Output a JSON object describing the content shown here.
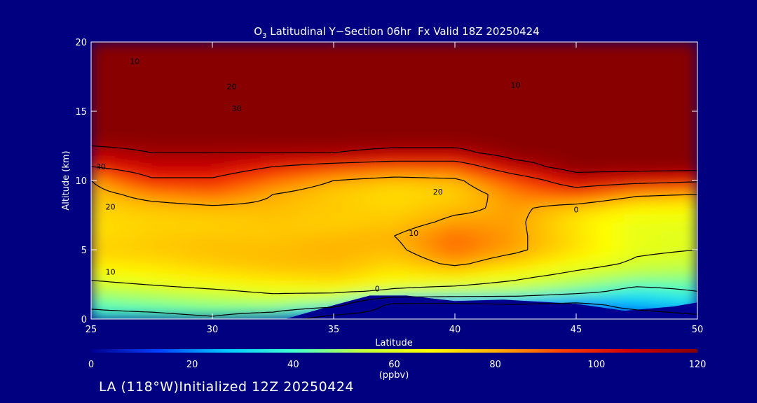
{
  "chart_data": {
    "type": "heatmap",
    "title_species": "O",
    "title_subscript": "3",
    "title_rest": " Latitudinal Y−Section 06hr  Fx Valid 18Z 20250424",
    "xlabel": "Latitude",
    "ylabel": "Altitude (km)",
    "xlim": [
      25,
      50
    ],
    "ylim": [
      0,
      20
    ],
    "x_ticks": [
      25,
      30,
      35,
      40,
      45,
      50
    ],
    "y_ticks": [
      0,
      5,
      10,
      15,
      20
    ],
    "colorbar": {
      "min": 0,
      "max": 120,
      "ticks": [
        0,
        20,
        40,
        60,
        80,
        100,
        120
      ],
      "unit": "(ppbv)",
      "colors": [
        "#000090",
        "#0040ff",
        "#00c8ff",
        "#40ffd0",
        "#c0ff40",
        "#ffff00",
        "#ffb000",
        "#ff4000",
        "#d00000",
        "#880000"
      ]
    },
    "contour_labels": [
      {
        "text": "10",
        "lat": 26.8,
        "alt": 18.4
      },
      {
        "text": "20",
        "lat": 30.8,
        "alt": 16.6
      },
      {
        "text": "30",
        "lat": 31.0,
        "alt": 15.0
      },
      {
        "text": "10",
        "lat": 42.5,
        "alt": 16.7
      },
      {
        "text": "30",
        "lat": 25.4,
        "alt": 10.8
      },
      {
        "text": "20",
        "lat": 25.8,
        "alt": 7.9
      },
      {
        "text": "20",
        "lat": 39.3,
        "alt": 9.0
      },
      {
        "text": "10",
        "lat": 38.3,
        "alt": 6.0
      },
      {
        "text": "10",
        "lat": 25.8,
        "alt": 3.2
      },
      {
        "text": "0",
        "lat": 36.8,
        "alt": 2.0
      },
      {
        "text": "0",
        "lat": 45.0,
        "alt": 7.7
      }
    ],
    "field": {
      "lats": [
        25,
        27.5,
        30,
        32.5,
        35,
        37.5,
        40,
        42.5,
        45,
        47.5,
        50
      ],
      "alts": [
        0,
        1,
        2,
        3,
        4,
        5,
        6,
        7,
        8,
        9,
        10,
        11,
        12,
        13,
        14,
        15,
        16,
        17,
        18,
        19,
        20
      ],
      "values": [
        [
          35,
          35,
          38,
          30,
          10,
          10,
          12,
          15,
          12,
          10,
          15
        ],
        [
          42,
          45,
          48,
          50,
          45,
          15,
          15,
          18,
          15,
          25,
          30
        ],
        [
          52,
          55,
          58,
          62,
          62,
          58,
          55,
          52,
          45,
          35,
          40
        ],
        [
          62,
          66,
          70,
          72,
          75,
          68,
          68,
          62,
          55,
          50,
          48
        ],
        [
          70,
          72,
          75,
          78,
          78,
          74,
          82,
          74,
          65,
          58,
          55
        ],
        [
          75,
          76,
          78,
          78,
          80,
          78,
          88,
          82,
          72,
          62,
          60
        ],
        [
          72,
          75,
          76,
          76,
          78,
          80,
          88,
          82,
          72,
          62,
          60
        ],
        [
          72,
          74,
          74,
          76,
          74,
          76,
          82,
          82,
          70,
          62,
          62
        ],
        [
          74,
          76,
          78,
          78,
          76,
          74,
          78,
          82,
          75,
          68,
          66
        ],
        [
          76,
          84,
          88,
          80,
          75,
          72,
          74,
          85,
          92,
          82,
          80
        ],
        [
          80,
          98,
          98,
          88,
          80,
          76,
          78,
          92,
          108,
          105,
          102
        ],
        [
          100,
          108,
          108,
          100,
          95,
          92,
          92,
          110,
          120,
          120,
          120
        ],
        [
          110,
          115,
          115,
          115,
          115,
          112,
          112,
          120,
          120,
          120,
          120
        ],
        [
          120,
          120,
          120,
          120,
          120,
          120,
          120,
          120,
          120,
          120,
          120
        ],
        [
          120,
          120,
          120,
          120,
          120,
          120,
          120,
          120,
          120,
          120,
          120
        ],
        [
          120,
          120,
          120,
          120,
          120,
          120,
          120,
          120,
          120,
          120,
          120
        ],
        [
          120,
          120,
          120,
          120,
          120,
          120,
          120,
          120,
          120,
          120,
          120
        ],
        [
          120,
          120,
          120,
          120,
          120,
          120,
          120,
          120,
          120,
          120,
          120
        ],
        [
          120,
          120,
          120,
          120,
          120,
          120,
          120,
          120,
          120,
          120,
          120
        ],
        [
          120,
          120,
          120,
          120,
          120,
          120,
          120,
          120,
          120,
          120,
          120
        ],
        [
          120,
          120,
          120,
          120,
          120,
          120,
          120,
          120,
          120,
          120,
          120
        ]
      ]
    },
    "surface_mask": [
      {
        "lat": 33.0,
        "alt": 0.0
      },
      {
        "lat": 35.0,
        "alt": 1.0
      },
      {
        "lat": 36.5,
        "alt": 1.7
      },
      {
        "lat": 38.0,
        "alt": 1.7
      },
      {
        "lat": 40.0,
        "alt": 1.3
      },
      {
        "lat": 42.0,
        "alt": 1.4
      },
      {
        "lat": 45.0,
        "alt": 1.1
      },
      {
        "lat": 47.0,
        "alt": 0.6
      },
      {
        "lat": 49.0,
        "alt": 0.9
      },
      {
        "lat": 50.0,
        "alt": 1.2
      }
    ]
  },
  "footer": {
    "text": "LA (118°W)Initialized 12Z 20250424"
  }
}
